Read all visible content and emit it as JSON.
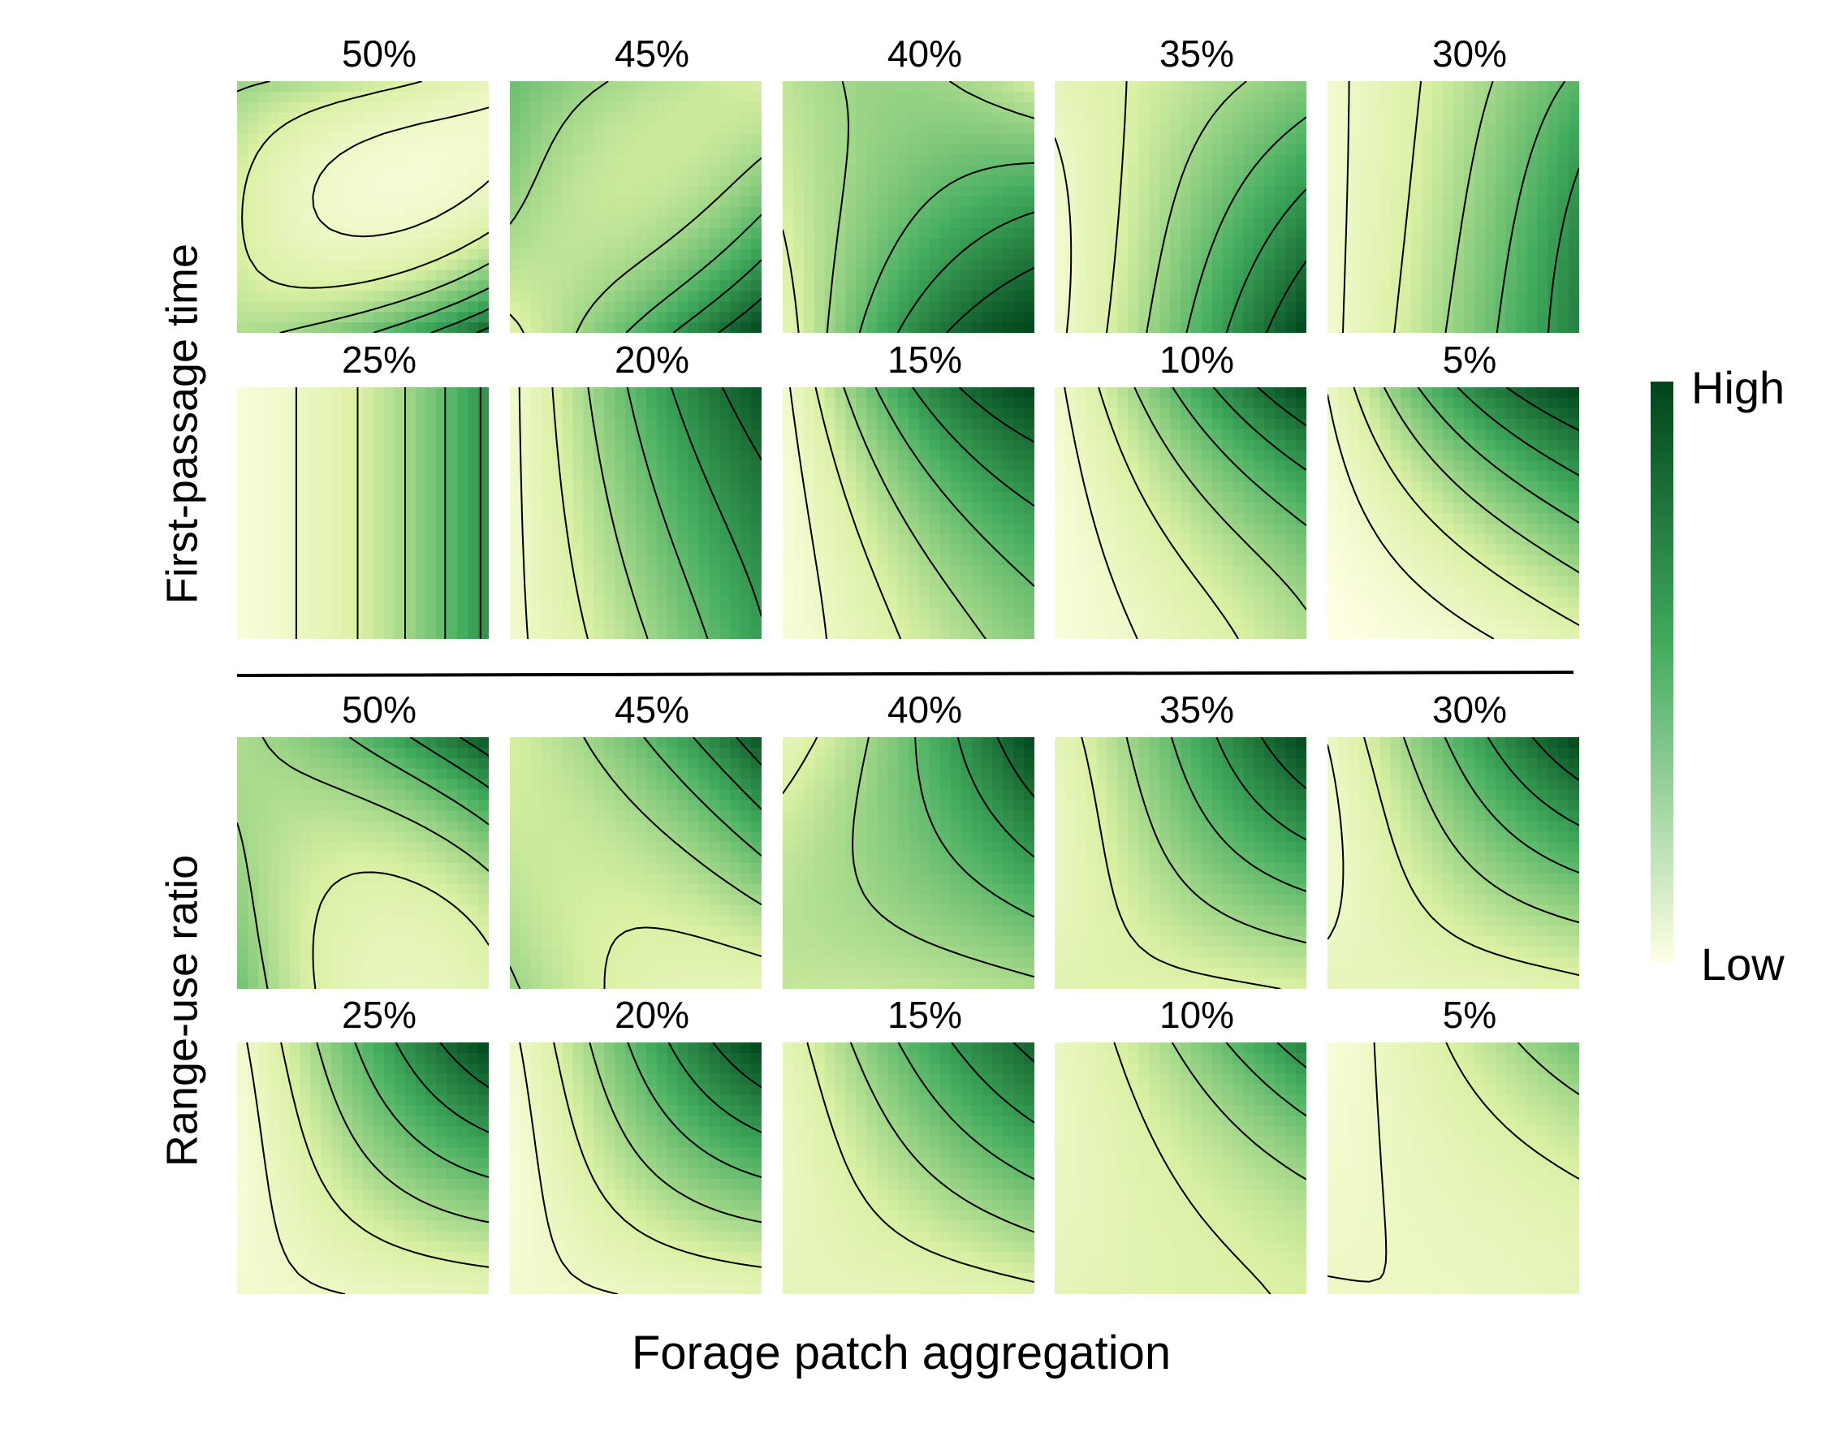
{
  "chart_data": {
    "type": "heatmap",
    "title": "",
    "xlabel": "Forage patch aggregation",
    "colorbar": {
      "high_label": "High",
      "low_label": "Low",
      "high_color": "#00441b",
      "mid_color": "#41ab5d",
      "low_color": "#ffffe5"
    },
    "contour_color": "#000000",
    "contour_levels": 6,
    "groups": [
      {
        "ylabel": "First-passage time",
        "panels": [
          {
            "label": "50%",
            "f": [
              0.45,
              0.35,
              0.2,
              0.3,
              0.1,
              0.2,
              0.4,
              0.55,
              0.9
            ]
          },
          {
            "label": "45%",
            "f": [
              0.55,
              0.4,
              0.3,
              0.45,
              0.35,
              0.55,
              0.25,
              0.6,
              1.0
            ]
          },
          {
            "label": "40%",
            "f": [
              0.35,
              0.45,
              0.3,
              0.3,
              0.55,
              0.7,
              0.2,
              0.75,
              1.0
            ]
          },
          {
            "label": "35%",
            "f": [
              0.2,
              0.35,
              0.5,
              0.1,
              0.45,
              0.75,
              0.1,
              0.55,
              1.0
            ]
          },
          {
            "label": "30%",
            "f": [
              0.1,
              0.35,
              0.6,
              0.1,
              0.4,
              0.75,
              0.1,
              0.45,
              0.8
            ]
          },
          {
            "label": "25%",
            "f": [
              0.05,
              0.3,
              0.75,
              0.05,
              0.3,
              0.75,
              0.05,
              0.3,
              0.75
            ]
          },
          {
            "label": "20%",
            "f": [
              0.1,
              0.6,
              0.95,
              0.1,
              0.5,
              0.8,
              0.1,
              0.4,
              0.7
            ]
          },
          {
            "label": "15%",
            "f": [
              0.1,
              0.7,
              1.0,
              0.05,
              0.45,
              0.7,
              0.05,
              0.3,
              0.5
            ]
          },
          {
            "label": "10%",
            "f": [
              0.1,
              0.6,
              1.0,
              0.05,
              0.35,
              0.6,
              0.05,
              0.2,
              0.4
            ]
          },
          {
            "label": "5%",
            "f": [
              0.15,
              0.7,
              1.0,
              0.05,
              0.35,
              0.6,
              0.0,
              0.1,
              0.25
            ]
          }
        ]
      },
      {
        "ylabel": "Range-use ratio",
        "panels": [
          {
            "label": "50%",
            "f": [
              0.4,
              0.6,
              0.95,
              0.45,
              0.3,
              0.45,
              0.55,
              0.2,
              0.25
            ]
          },
          {
            "label": "45%",
            "f": [
              0.3,
              0.55,
              0.95,
              0.35,
              0.35,
              0.55,
              0.45,
              0.25,
              0.2
            ]
          },
          {
            "label": "40%",
            "f": [
              0.2,
              0.55,
              1.0,
              0.35,
              0.5,
              0.7,
              0.35,
              0.35,
              0.4
            ]
          },
          {
            "label": "35%",
            "f": [
              0.2,
              0.6,
              1.0,
              0.15,
              0.45,
              0.65,
              0.25,
              0.25,
              0.3
            ]
          },
          {
            "label": "30%",
            "f": [
              0.15,
              0.6,
              1.0,
              0.1,
              0.4,
              0.6,
              0.2,
              0.2,
              0.25
            ]
          },
          {
            "label": "25%",
            "f": [
              0.1,
              0.6,
              1.0,
              0.05,
              0.4,
              0.6,
              0.1,
              0.15,
              0.2
            ]
          },
          {
            "label": "20%",
            "f": [
              0.1,
              0.6,
              1.0,
              0.05,
              0.4,
              0.6,
              0.1,
              0.15,
              0.2
            ]
          },
          {
            "label": "15%",
            "f": [
              0.2,
              0.6,
              0.9,
              0.15,
              0.4,
              0.6,
              0.2,
              0.2,
              0.25
            ]
          },
          {
            "label": "10%",
            "f": [
              0.15,
              0.45,
              0.8,
              0.15,
              0.3,
              0.45,
              0.2,
              0.25,
              0.3
            ]
          },
          {
            "label": "5%",
            "f": [
              0.05,
              0.3,
              0.55,
              0.1,
              0.2,
              0.3,
              0.15,
              0.15,
              0.2
            ]
          }
        ]
      }
    ]
  }
}
